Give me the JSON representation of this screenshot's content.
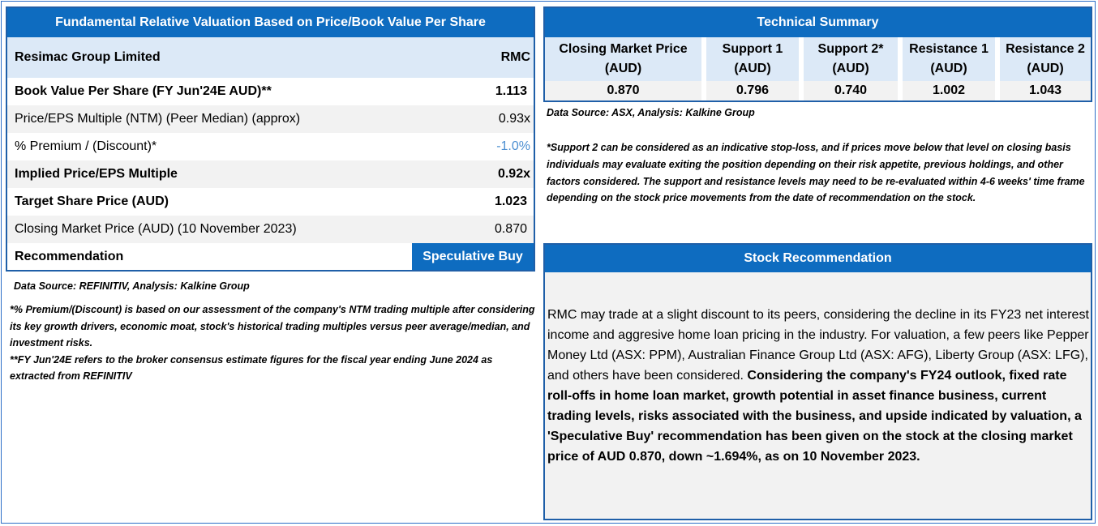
{
  "valuation": {
    "title": "Fundamental Relative Valuation Based on Price/Book Value Per Share",
    "company": "Resimac Group Limited",
    "ticker": "RMC",
    "rows": [
      {
        "label": "Book Value Per Share (FY Jun'24E AUD)**",
        "value": "1.113"
      },
      {
        "label": "Price/EPS Multiple (NTM) (Peer Median) (approx)",
        "value": "0.93x"
      },
      {
        "label": "% Premium / (Discount)*",
        "value": "-1.0%"
      },
      {
        "label": "Implied Price/EPS Multiple",
        "value": "0.92x"
      },
      {
        "label": "Target Share Price (AUD)",
        "value": "1.023"
      },
      {
        "label": "Closing Market Price (AUD) (10 November 2023)",
        "value": "0.870"
      },
      {
        "label": "Recommendation",
        "value": "Speculative Buy"
      }
    ],
    "source": "Data Source: REFINITIV, Analysis: Kalkine Group",
    "note1": "*% Premium/(Discount) is based on our assessment of the company's NTM trading multiple after considering its key growth drivers, economic moat, stock's historical trading multiples versus peer average/median, and investment risks.",
    "note2": "**FY Jun'24E refers to the broker consensus estimate figures for the fiscal year ending June 2024 as extracted from REFINITIV"
  },
  "technical": {
    "title": "Technical Summary",
    "columns": [
      {
        "line1": "Closing Market Price",
        "line2": "(AUD)",
        "value": "0.870"
      },
      {
        "line1": "Support 1",
        "line2": "(AUD)",
        "value": "0.796"
      },
      {
        "line1": "Support 2*",
        "line2": "(AUD)",
        "value": "0.740"
      },
      {
        "line1": "Resistance 1",
        "line2": "(AUD)",
        "value": "1.002"
      },
      {
        "line1": "Resistance 2",
        "line2": "(AUD)",
        "value": "1.043"
      }
    ],
    "source": "Data Source: ASX, Analysis: Kalkine Group",
    "note": "*Support 2 can be considered as an indicative stop-loss, and if prices move below that level on closing basis individuals may evaluate exiting the position depending on their risk appetite, previous holdings, and other factors considered. The support and resistance levels may need to be re-evaluated within 4-6 weeks' time frame depending on the stock price movements from the date of recommendation on the stock."
  },
  "recommendation": {
    "title": "Stock Recommendation",
    "body_regular": "RMC may trade at a slight discount to its peers, considering the decline in its FY23 net interest income and aggresive home loan pricing in the industry. For valuation, a few peers like Pepper Money Ltd (ASX: PPM), Australian Finance Group Ltd (ASX: AFG), Liberty Group (ASX: LFG), and others have been considered. ",
    "body_bold": "Considering the company's FY24 outlook, fixed rate roll-offs in home loan market, growth potential in asset finance business, current trading levels, risks associated with the business, and upside indicated by valuation, a 'Speculative Buy' recommendation has been given on the stock at the closing market price of AUD 0.870, down ~1.694%, as on 10 November 2023."
  }
}
